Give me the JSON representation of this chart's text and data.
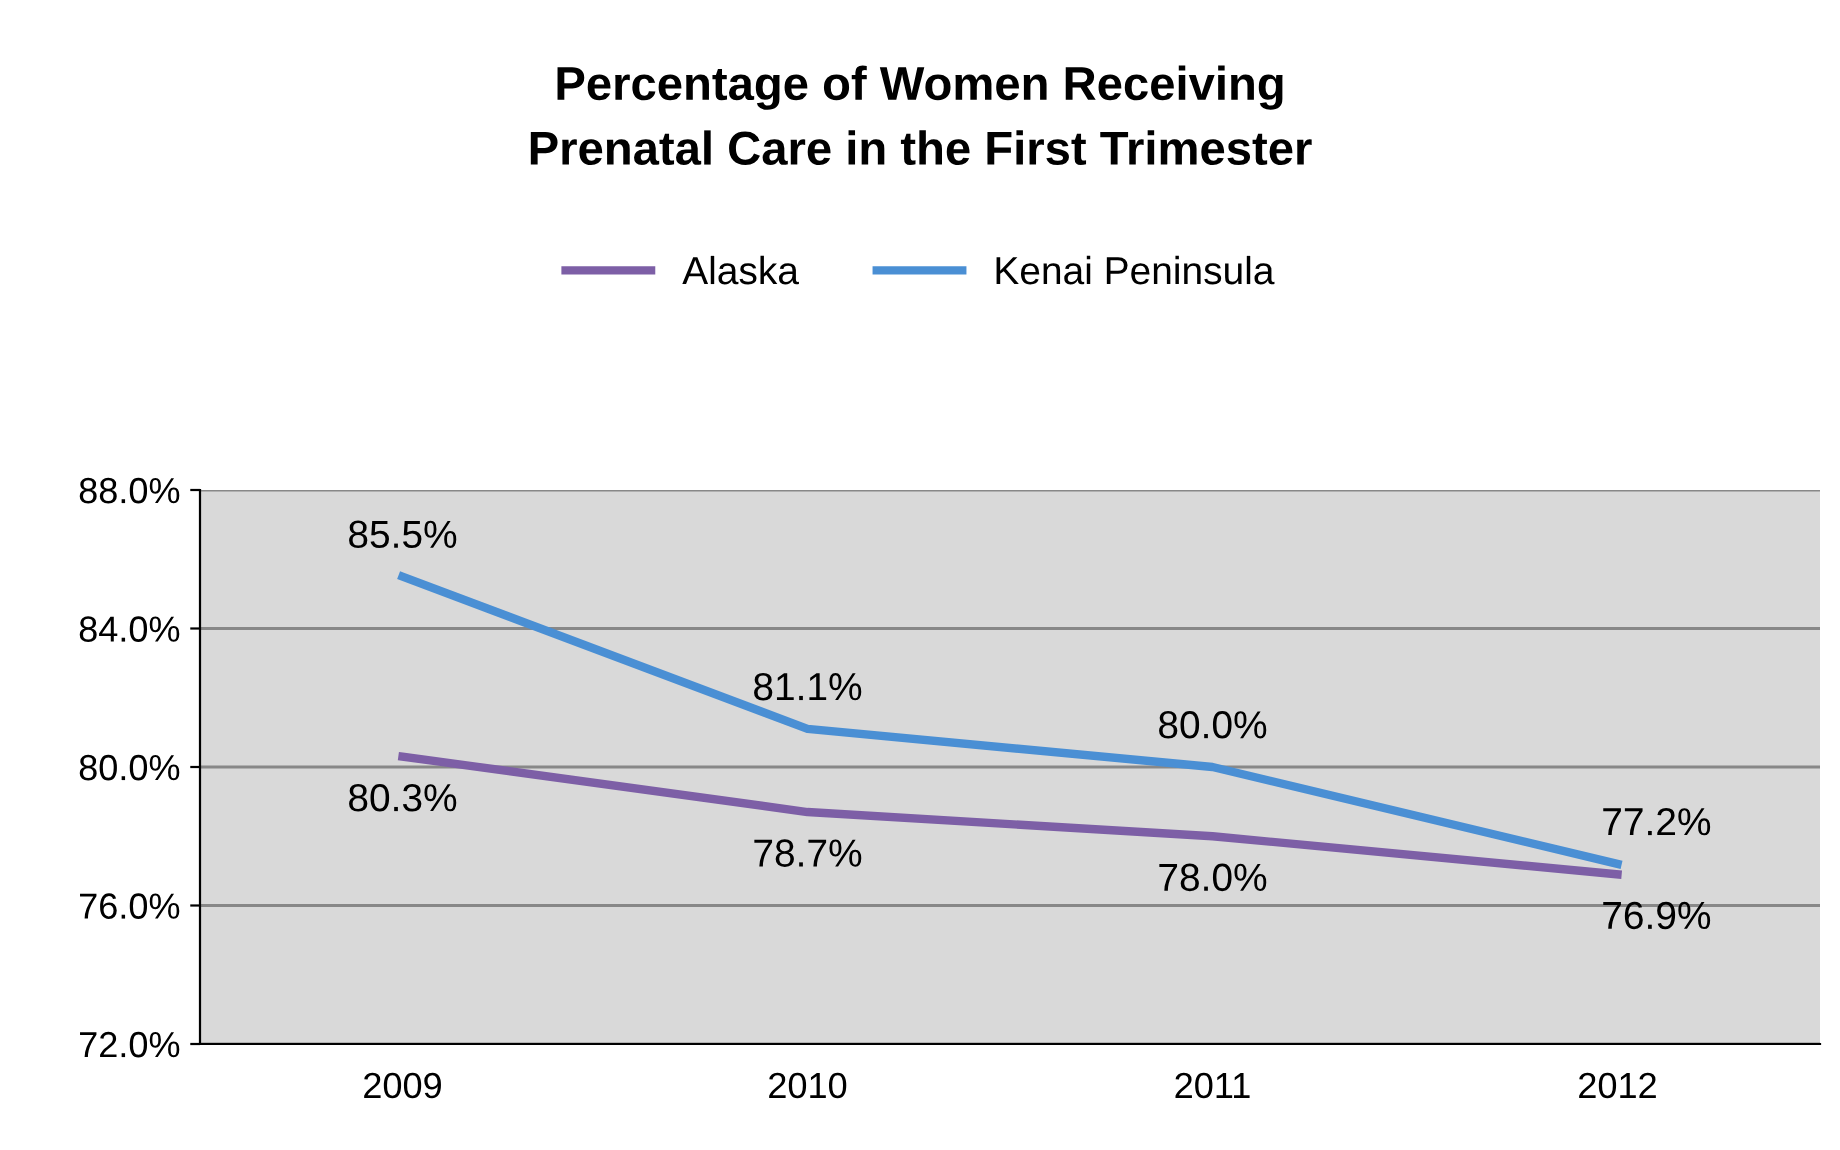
{
  "chart_data": {
    "type": "line",
    "title": "Percentage of Women Receiving\nPrenatal Care in the First Trimester",
    "categories": [
      "2009",
      "2010",
      "2011",
      "2012"
    ],
    "series": [
      {
        "name": "Alaska",
        "color": "#7d5fa6",
        "values": [
          80.3,
          78.7,
          78.0,
          76.9
        ],
        "value_labels": [
          "80.3%",
          "78.7%",
          "78.0%",
          "76.9%"
        ]
      },
      {
        "name": "Kenai Peninsula",
        "color": "#4a8fd4",
        "values": [
          85.5,
          81.1,
          80.0,
          77.2
        ],
        "value_labels": [
          "85.5%",
          "81.1%",
          "80.0%",
          "77.2%"
        ]
      }
    ],
    "ylim": [
      72,
      88
    ],
    "yticks": [
      {
        "value": 72,
        "label": "72.0%"
      },
      {
        "value": 76,
        "label": "76.0%"
      },
      {
        "value": 80,
        "label": "80.0%"
      },
      {
        "value": 84,
        "label": "84.0%"
      },
      {
        "value": 88,
        "label": "88.0%"
      }
    ],
    "grid": "y",
    "legend": "top",
    "marker": "none",
    "line_style": "solid"
  }
}
